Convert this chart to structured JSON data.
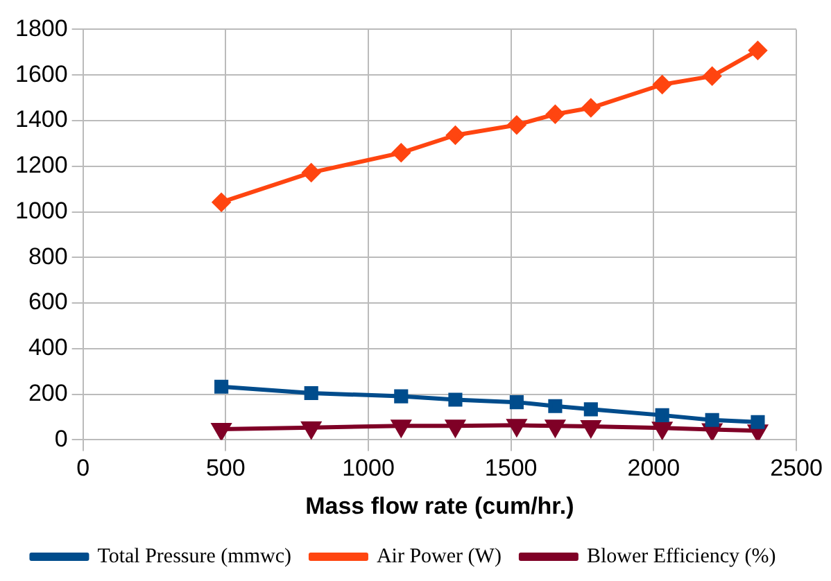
{
  "chart_data": {
    "type": "line",
    "xlabel": "Mass flow rate (cum/hr.)",
    "x": [
      485,
      800,
      1115,
      1305,
      1520,
      1655,
      1780,
      2030,
      2205,
      2365
    ],
    "series": [
      {
        "name": "Total Pressure (mmwc)",
        "color": "#004c8c",
        "marker": "square",
        "values": [
          233,
          205,
          191,
          176,
          165,
          148,
          134,
          108,
          87,
          78
        ]
      },
      {
        "name": "Air Power (W)",
        "color": "#ff4510",
        "marker": "diamond",
        "values": [
          1042,
          1172,
          1259,
          1336,
          1381,
          1428,
          1456,
          1558,
          1595,
          1708
        ]
      },
      {
        "name": "Blower Efficiency (%)",
        "color": "#7f0026",
        "marker": "triangle",
        "values": [
          47,
          54,
          61,
          61,
          64,
          61,
          59,
          52,
          45,
          40
        ]
      }
    ],
    "xlim": [
      0,
      2500
    ],
    "xticks": [
      0,
      500,
      1000,
      1500,
      2000,
      2500
    ],
    "ylim": [
      0,
      1800
    ],
    "yticks": [
      0,
      200,
      400,
      600,
      800,
      1000,
      1200,
      1400,
      1600,
      1800
    ],
    "grid": true,
    "legend": "bottom",
    "line_style": "solid"
  }
}
